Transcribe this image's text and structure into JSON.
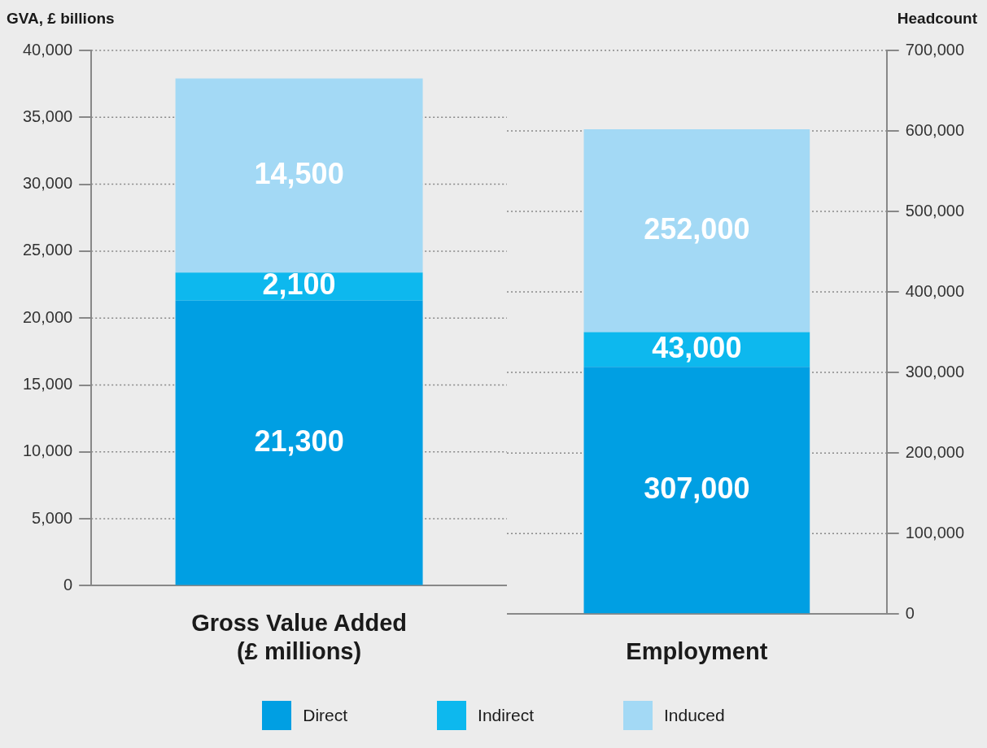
{
  "chart_data": [
    {
      "type": "bar",
      "stacked": true,
      "categories": [
        "Gross Value Added (£ millions)"
      ],
      "ylabel": "GVA, £ billions",
      "ylim": [
        0,
        40000
      ],
      "yticks": [
        0,
        {
          "value": 5000,
          "label": "5,000"
        },
        {
          "value": 10000,
          "label": "10,000"
        },
        {
          "value": 15000,
          "label": "15,000"
        },
        {
          "value": 20000,
          "label": "20,000"
        },
        {
          "value": 25000,
          "label": "25,000"
        },
        {
          "value": 30000,
          "label": "30,000"
        },
        {
          "value": 35000,
          "label": "35,000"
        },
        {
          "value": 40000,
          "label": "40,000"
        }
      ],
      "series": [
        {
          "name": "Direct",
          "color": "#009fe3",
          "values": [
            21300
          ],
          "value_labels": [
            "21,300"
          ]
        },
        {
          "name": "Indirect",
          "color": "#0db8ee",
          "values": [
            2100
          ],
          "value_labels": [
            "2,100"
          ]
        },
        {
          "name": "Induced",
          "color": "#a3d9f5",
          "values": [
            14500
          ],
          "value_labels": [
            "14,500"
          ]
        }
      ],
      "grid": "y",
      "legend": "bottom"
    },
    {
      "type": "bar",
      "stacked": true,
      "categories": [
        "Employment"
      ],
      "y2label": "Headcount",
      "y2lim": [
        0,
        700000
      ],
      "y2ticks": [
        0,
        {
          "value": 100000,
          "label": "100,000"
        },
        {
          "value": 200000,
          "label": "200,000"
        },
        {
          "value": 300000,
          "label": "300,000"
        },
        {
          "value": 400000,
          "label": "400,000"
        },
        {
          "value": 500000,
          "label": "500,000"
        },
        {
          "value": 600000,
          "label": "600,000"
        },
        {
          "value": 700000,
          "label": "700,000"
        }
      ],
      "series": [
        {
          "color": "#009fe3",
          "values": [
            307000
          ],
          "axis": "y2",
          "value_labels": [
            "307,000"
          ]
        },
        {
          "color": "#0db8ee",
          "values": [
            43000
          ],
          "axis": "y2",
          "value_labels": [
            "43,000"
          ]
        },
        {
          "color": "#a3d9f5",
          "values": [
            252000
          ],
          "axis": "y2",
          "value_labels": [
            "252,000"
          ]
        }
      ],
      "grid": "y"
    }
  ]
}
